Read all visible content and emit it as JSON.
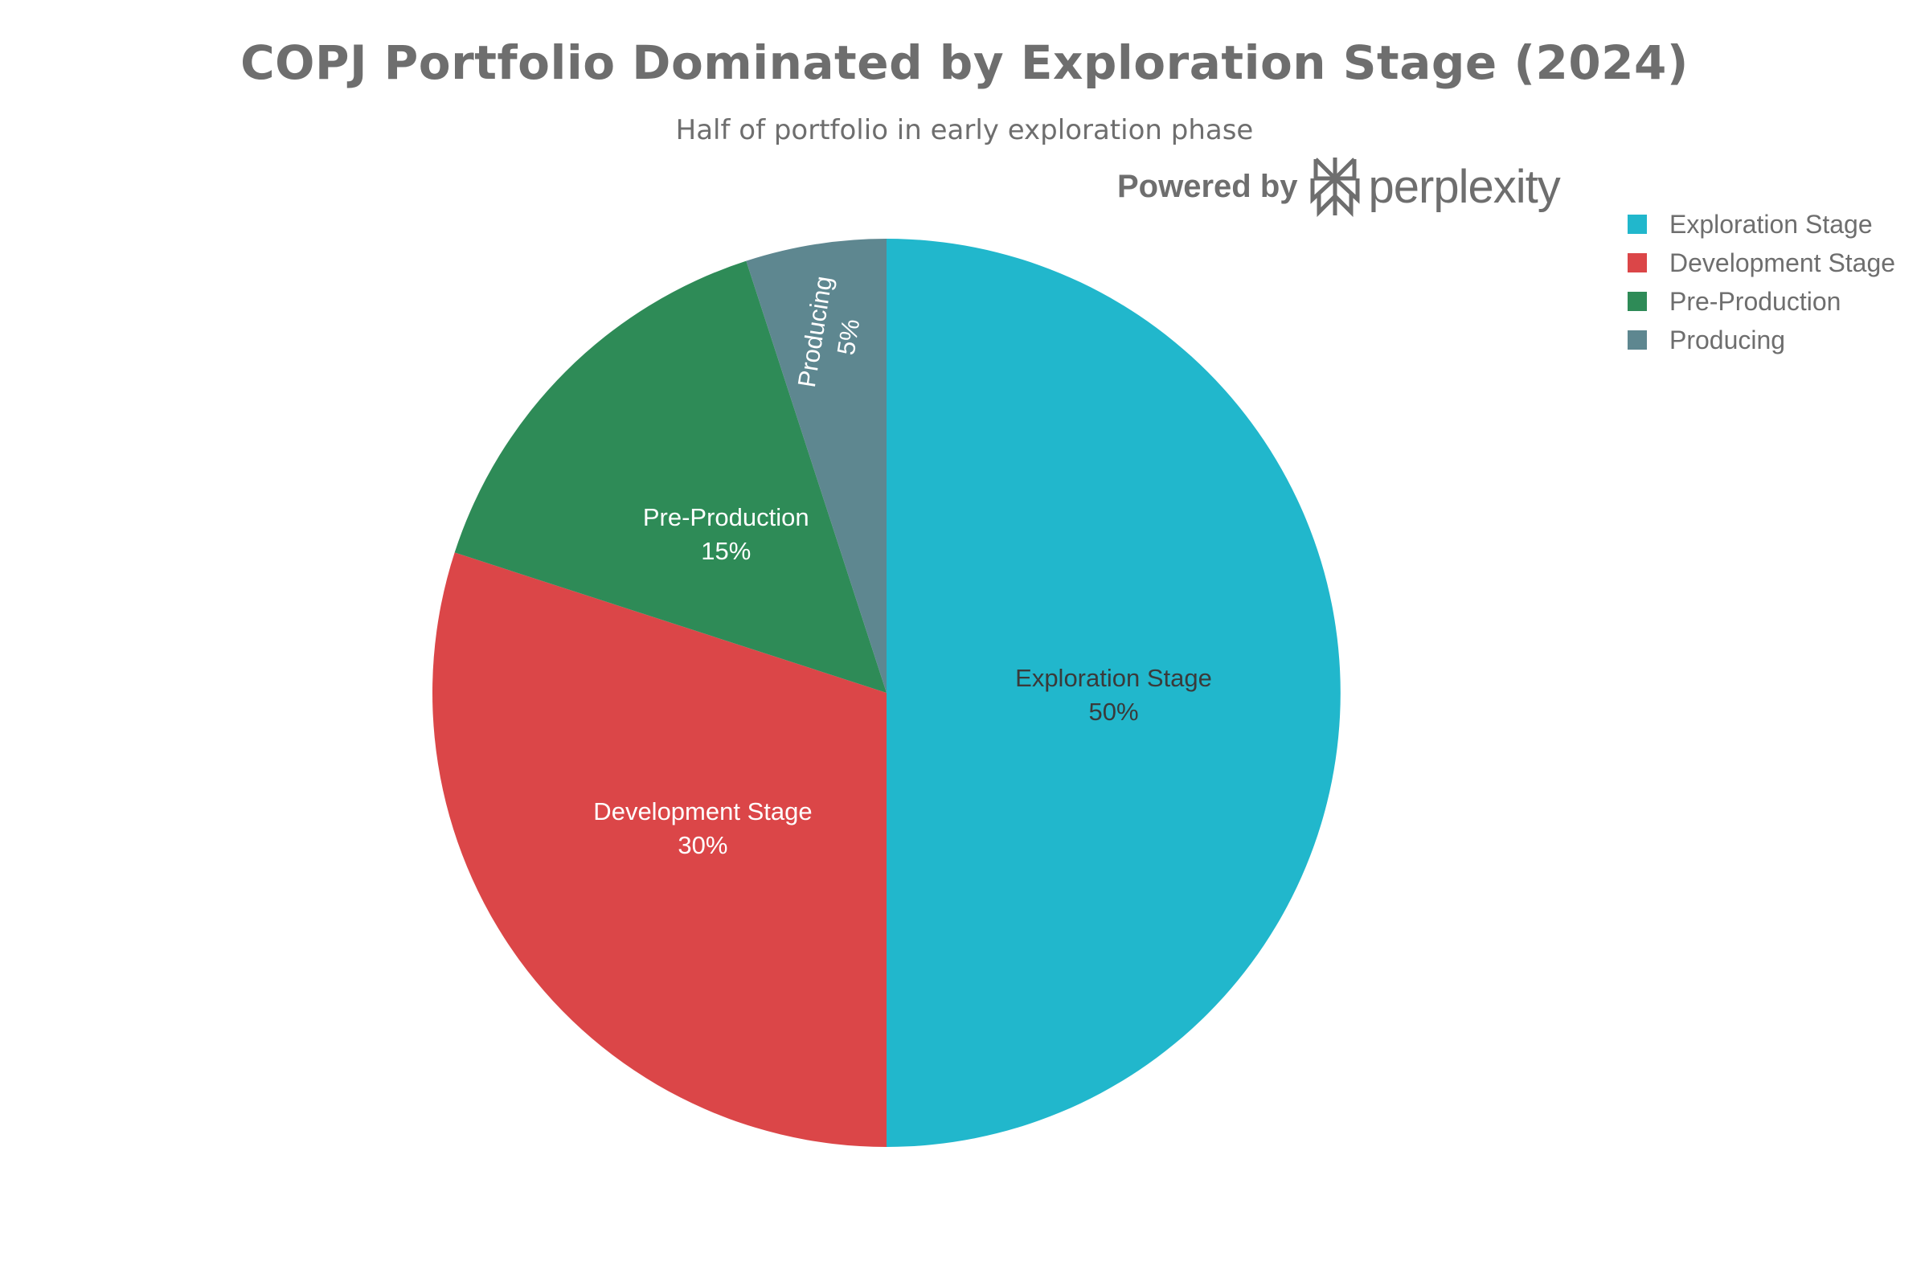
{
  "chart_data": {
    "type": "pie",
    "title": "COPJ Portfolio Dominated by Exploration Stage (2024)",
    "subtitle": "Half of portfolio in early exploration phase",
    "legend_position": "top-right",
    "slices": [
      {
        "label": "Exploration Stage",
        "value": 50,
        "percent_label": "50%",
        "color": "#21b7cc",
        "text_color": "#3a3a3a"
      },
      {
        "label": "Development Stage",
        "value": 30,
        "percent_label": "30%",
        "color": "#db4648",
        "text_color": "#ffffff"
      },
      {
        "label": "Pre-Production",
        "value": 15,
        "percent_label": "15%",
        "color": "#2e8b57",
        "text_color": "#ffffff"
      },
      {
        "label": "Producing",
        "value": 5,
        "percent_label": "5%",
        "color": "#5e8790",
        "text_color": "#ffffff"
      }
    ]
  },
  "branding": {
    "powered_by": "Powered by",
    "brand_name": "perplexity",
    "logo_icon": "perplexity-logo-icon"
  }
}
